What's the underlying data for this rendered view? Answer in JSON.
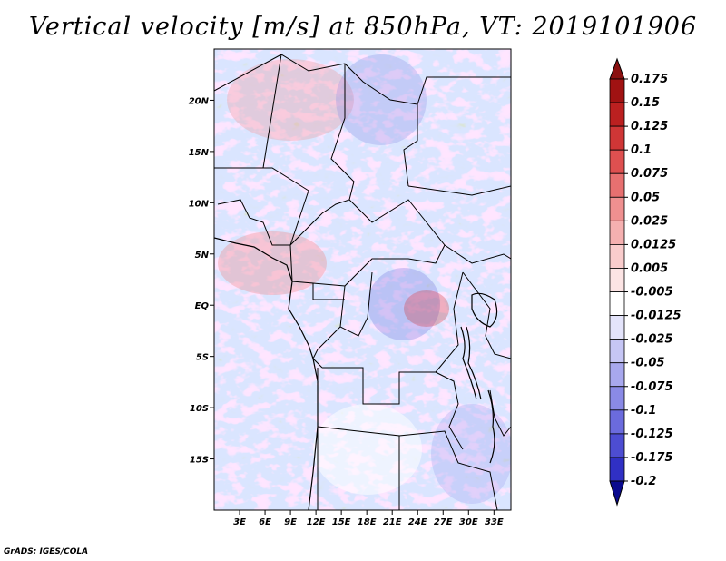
{
  "title": "Vertical velocity [m/s] at 850hPa, VT: 2019101906",
  "credit": "GrADS: IGES/COLA",
  "map": {
    "lon_range": [
      0,
      35
    ],
    "lat_range": [
      -20,
      25
    ],
    "lon_ticks": [
      {
        "value": 3,
        "label": "3E"
      },
      {
        "value": 6,
        "label": "6E"
      },
      {
        "value": 9,
        "label": "9E"
      },
      {
        "value": 12,
        "label": "12E"
      },
      {
        "value": 15,
        "label": "15E"
      },
      {
        "value": 18,
        "label": "18E"
      },
      {
        "value": 21,
        "label": "21E"
      },
      {
        "value": 24,
        "label": "24E"
      },
      {
        "value": 27,
        "label": "27E"
      },
      {
        "value": 30,
        "label": "30E"
      },
      {
        "value": 33,
        "label": "33E"
      }
    ],
    "lat_ticks": [
      {
        "value": 20,
        "label": "20N"
      },
      {
        "value": 15,
        "label": "15N"
      },
      {
        "value": 10,
        "label": "10N"
      },
      {
        "value": 5,
        "label": "5N"
      },
      {
        "value": 0,
        "label": "EQ"
      },
      {
        "value": -5,
        "label": "5S"
      },
      {
        "value": -10,
        "label": "10S"
      },
      {
        "value": -15,
        "label": "15S"
      }
    ]
  },
  "colorbar": {
    "levels": [
      {
        "label": "0.175",
        "color": "#a01212"
      },
      {
        "label": "0.15",
        "color": "#bb2020"
      },
      {
        "label": "0.125",
        "color": "#cf3636"
      },
      {
        "label": "0.1",
        "color": "#de5050"
      },
      {
        "label": "0.075",
        "color": "#e77070"
      },
      {
        "label": "0.05",
        "color": "#ef9090"
      },
      {
        "label": "0.025",
        "color": "#f5b0b0"
      },
      {
        "label": "0.0125",
        "color": "#f9cccc"
      },
      {
        "label": "0.005",
        "color": "#fce4e4"
      },
      {
        "label": "-0.005",
        "color": "#ffffff"
      },
      {
        "label": "-0.0125",
        "color": "#e4e4fb"
      },
      {
        "label": "-0.025",
        "color": "#c6c6f5"
      },
      {
        "label": "-0.05",
        "color": "#a8a8ee"
      },
      {
        "label": "-0.075",
        "color": "#8a8ae6"
      },
      {
        "label": "-0.1",
        "color": "#6b6bdd"
      },
      {
        "label": "-0.125",
        "color": "#4d4dd2"
      },
      {
        "label": "-0.175",
        "color": "#3030c4"
      },
      {
        "label": "-0.2",
        "color": "#1414aa"
      }
    ],
    "top_color": "#8a1010",
    "bottom_color": "#0a0a8e"
  }
}
